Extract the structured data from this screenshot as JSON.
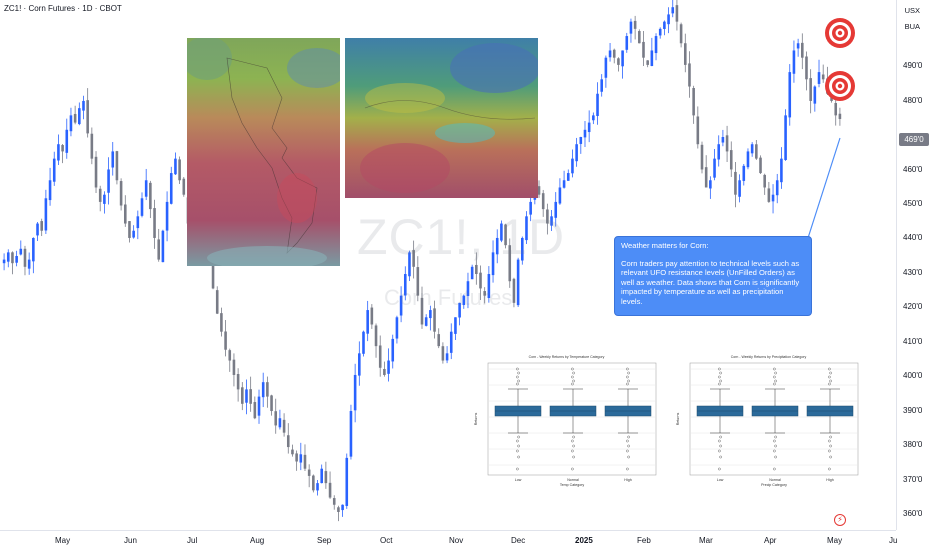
{
  "header": {
    "title": "ZC1! · Corn Futures · 1D · CBOT"
  },
  "watermark": {
    "symbol": "ZC1!, 1D",
    "name": "Corn Futures"
  },
  "price_scale": {
    "currency": "USX",
    "unit": "BUA",
    "ticks": [
      "490'0",
      "480'0",
      "460'0",
      "450'0",
      "440'0",
      "430'0",
      "420'0",
      "410'0",
      "400'0",
      "390'0",
      "380'0",
      "370'0",
      "360'0"
    ],
    "current_price": "469'0"
  },
  "time_axis": {
    "labels": [
      "May",
      "Jun",
      "Jul",
      "Aug",
      "Sep",
      "Oct",
      "Nov",
      "Dec",
      "2025",
      "Feb",
      "Mar",
      "Apr",
      "May",
      "Ju"
    ]
  },
  "annotation": {
    "title": "Weather matters for Corn:",
    "body": "Corn traders pay attention to technical levels such as relevant UFO resistance levels (UnFilled Orders) as well as weather. Data shows that Corn is significantly impacted by temperature as well as precipitation levels."
  },
  "boxplots": [
    {
      "title": "Corn - Weekly Returns by Temperature Category",
      "xlabel": "Temp Category",
      "ylabel": "Returns",
      "categories": [
        "Low",
        "Normal",
        "High"
      ]
    },
    {
      "title": "Corn - Weekly Returns by Precipitation Category",
      "xlabel": "Precip Category",
      "ylabel": "Returns",
      "categories": [
        "Low",
        "Normal",
        "High"
      ]
    }
  ],
  "colors": {
    "up": "#2962ff",
    "down": "#787b86",
    "bubble": "#4d8df7",
    "target": "#e53935"
  },
  "chart_data": {
    "type": "candlestick",
    "ylim": [
      355,
      502
    ],
    "close_series": [
      430,
      432,
      429,
      431,
      433,
      428,
      430,
      436,
      440,
      438,
      447,
      452,
      458,
      462,
      460,
      466,
      470,
      468,
      472,
      474,
      465,
      458,
      450,
      446,
      448,
      455,
      460,
      452,
      445,
      440,
      436,
      438,
      442,
      447,
      452,
      444,
      436,
      430,
      438,
      446,
      454,
      458,
      452,
      448,
      440,
      432,
      438,
      444,
      436,
      430,
      422,
      415,
      410,
      405,
      402,
      398,
      394,
      390,
      394,
      390,
      386,
      392,
      396,
      392,
      388,
      384,
      386,
      382,
      378,
      376,
      374,
      376,
      372,
      370,
      366,
      368,
      372,
      368,
      364,
      362,
      360,
      362,
      375,
      388,
      398,
      404,
      410,
      416,
      412,
      406,
      400,
      398,
      402,
      408,
      414,
      420,
      426,
      432,
      428,
      420,
      412,
      414,
      416,
      410,
      406,
      402,
      404,
      410,
      414,
      418,
      420,
      424,
      428,
      426,
      422,
      420,
      426,
      432,
      436,
      440,
      434,
      424,
      418,
      430,
      436,
      442,
      446,
      450,
      448,
      444,
      440,
      442,
      446,
      450,
      452,
      454,
      458,
      462,
      464,
      466,
      468,
      470,
      476,
      480,
      486,
      488,
      486,
      484,
      488,
      492,
      496,
      494,
      490,
      486,
      484,
      488,
      492,
      494,
      496,
      498,
      500,
      496,
      490,
      484,
      478,
      470,
      462,
      455,
      450,
      452,
      458,
      462,
      464,
      460,
      455,
      448,
      452,
      456,
      460,
      462,
      458,
      454,
      450,
      446,
      448,
      452,
      458,
      470,
      482,
      488,
      490,
      486,
      480,
      474,
      478,
      482,
      480,
      476,
      474,
      470,
      469
    ]
  }
}
